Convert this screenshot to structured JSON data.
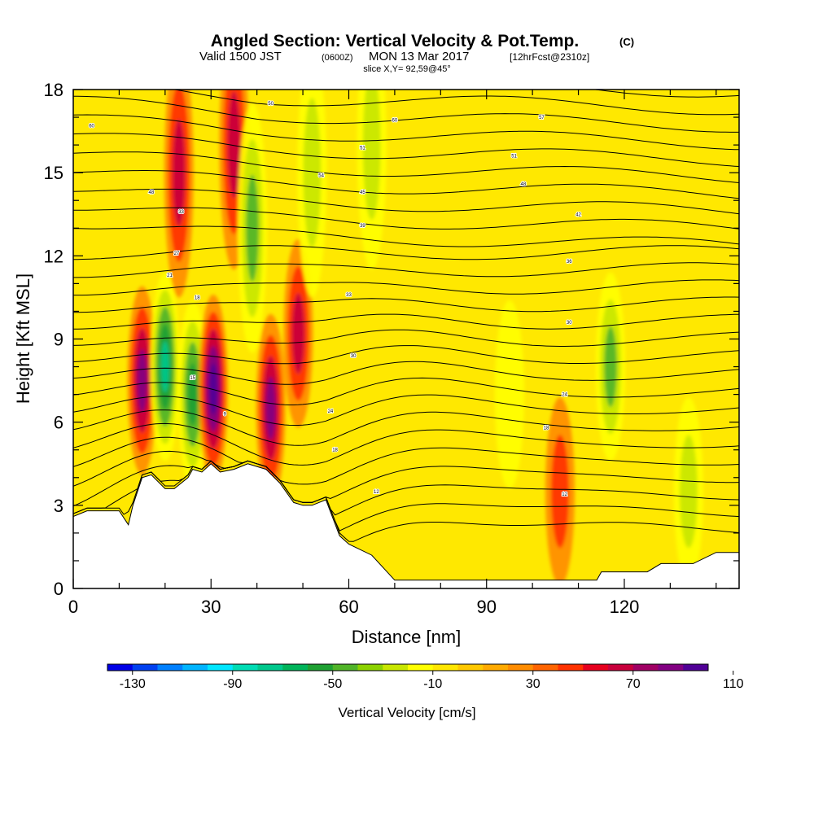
{
  "header": {
    "title_main": "Angled Section: Vertical Velocity & Pot.Temp.",
    "title_units": "(C)",
    "valid_a": "Valid 1500 JST",
    "valid_b": "(0600Z)",
    "valid_c": "MON 13 Mar 2017",
    "valid_d": "[12hrFcst@2310z]",
    "slice": "slice X,Y= 92,59@45°"
  },
  "chart_data": {
    "type": "heatmap",
    "xlabel": "Distance [nm]",
    "ylabel": "Height [Kft MSL]",
    "xlim": [
      0,
      145
    ],
    "ylim": [
      0,
      18
    ],
    "x_ticks": [
      0,
      30,
      60,
      90,
      120
    ],
    "y_ticks": [
      0,
      3,
      6,
      9,
      12,
      15,
      18
    ],
    "colorbar": {
      "label": "Vertical Velocity [cm/s]",
      "tick_labels": [
        "-130",
        "-90",
        "-50",
        "-10",
        "30",
        "70",
        "110"
      ],
      "tick_values": [
        -130,
        -90,
        -50,
        -10,
        30,
        70,
        110
      ],
      "colors": [
        "#0000e6",
        "#0040f0",
        "#0080ff",
        "#00b4ff",
        "#00e6ff",
        "#00dcb4",
        "#00c88c",
        "#00b45a",
        "#1ea032",
        "#50b428",
        "#8cd200",
        "#c8e600",
        "#ffff00",
        "#ffe600",
        "#ffc800",
        "#ffaa00",
        "#ff8c00",
        "#ff6400",
        "#ff3200",
        "#e6001e",
        "#c8003c",
        "#a00064",
        "#820082",
        "#500096"
      ]
    },
    "terrain_height_kft": {
      "x": [
        0,
        3,
        5,
        10,
        12,
        13,
        15,
        17,
        20,
        22,
        25,
        26,
        28,
        30,
        32,
        35,
        38,
        42,
        45,
        48,
        50,
        52,
        55,
        58,
        60,
        65,
        70,
        75,
        80,
        85,
        90,
        95,
        100,
        105,
        110,
        114,
        115,
        120,
        125,
        128,
        130,
        135,
        140,
        145
      ],
      "y": [
        2.6,
        2.8,
        2.8,
        2.8,
        2.3,
        3.0,
        4.0,
        4.1,
        3.6,
        3.6,
        4.0,
        4.3,
        4.2,
        4.5,
        4.2,
        4.3,
        4.5,
        4.3,
        3.8,
        3.1,
        3.0,
        3.0,
        3.2,
        1.9,
        1.6,
        1.2,
        0.3,
        0.3,
        0.3,
        0.3,
        0.3,
        0.3,
        0.3,
        0.3,
        0.3,
        0.3,
        0.6,
        0.6,
        0.6,
        0.9,
        0.9,
        0.9,
        1.3,
        1.3
      ]
    },
    "vertical_velocity_features": [
      {
        "type": "updraft",
        "x": 15,
        "z": 7.5,
        "peak": 80
      },
      {
        "type": "downdraft",
        "x": 20,
        "z": 8,
        "peak": -80
      },
      {
        "type": "updraft",
        "x": 23,
        "z": 15,
        "peak": 70
      },
      {
        "type": "downdraft",
        "x": 26,
        "z": 7,
        "peak": -60
      },
      {
        "type": "updraft",
        "x": 30.5,
        "z": 7.2,
        "peak": 110
      },
      {
        "type": "updraft",
        "x": 35,
        "z": 16,
        "peak": 70
      },
      {
        "type": "downdraft",
        "x": 39,
        "z": 13,
        "peak": -45
      },
      {
        "type": "updraft",
        "x": 43,
        "z": 6.5,
        "peak": 80
      },
      {
        "type": "updraft",
        "x": 49,
        "z": 9.2,
        "peak": 70
      },
      {
        "type": "downdraft",
        "x": 52,
        "z": 15,
        "peak": -35
      },
      {
        "type": "downdraft",
        "x": 65,
        "z": 16,
        "peak": -40
      },
      {
        "type": "downdraft",
        "x": 95,
        "z": 7,
        "peak": -25
      },
      {
        "type": "updraft",
        "x": 106,
        "z": 3.5,
        "peak": 55
      },
      {
        "type": "downdraft",
        "x": 117,
        "z": 8,
        "peak": -45
      },
      {
        "type": "downdraft",
        "x": 134,
        "z": 3.5,
        "peak": -30
      }
    ],
    "contour_labels": [
      {
        "text": "60",
        "x": 4,
        "z": 16.7
      },
      {
        "text": "48",
        "x": 17,
        "z": 14.3
      },
      {
        "text": "33",
        "x": 23.5,
        "z": 13.6
      },
      {
        "text": "27",
        "x": 22.5,
        "z": 12.1
      },
      {
        "text": "21",
        "x": 21,
        "z": 11.3
      },
      {
        "text": "18",
        "x": 27,
        "z": 10.5
      },
      {
        "text": "15",
        "x": 26,
        "z": 7.6
      },
      {
        "text": "9",
        "x": 33,
        "z": 6.3
      },
      {
        "text": "50",
        "x": 43,
        "z": 17.5
      },
      {
        "text": "54",
        "x": 54,
        "z": 14.9
      },
      {
        "text": "51",
        "x": 63,
        "z": 15.9
      },
      {
        "text": "45",
        "x": 63,
        "z": 14.3
      },
      {
        "text": "39",
        "x": 63,
        "z": 13.1
      },
      {
        "text": "33",
        "x": 60,
        "z": 10.6
      },
      {
        "text": "30",
        "x": 61,
        "z": 8.4
      },
      {
        "text": "24",
        "x": 56,
        "z": 6.4
      },
      {
        "text": "18",
        "x": 57,
        "z": 5.0
      },
      {
        "text": "12",
        "x": 66,
        "z": 3.5
      },
      {
        "text": "60",
        "x": 70,
        "z": 16.9
      },
      {
        "text": "57",
        "x": 102,
        "z": 17.0
      },
      {
        "text": "51",
        "x": 96,
        "z": 15.6
      },
      {
        "text": "48",
        "x": 98,
        "z": 14.6
      },
      {
        "text": "42",
        "x": 110,
        "z": 13.5
      },
      {
        "text": "36",
        "x": 108,
        "z": 11.8
      },
      {
        "text": "30",
        "x": 108,
        "z": 9.6
      },
      {
        "text": "24",
        "x": 107,
        "z": 7.0
      },
      {
        "text": "18",
        "x": 103,
        "z": 5.8
      },
      {
        "text": "12",
        "x": 107,
        "z": 3.4
      }
    ]
  }
}
